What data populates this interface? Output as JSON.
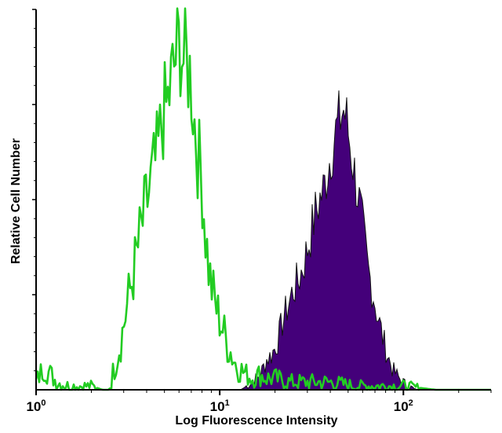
{
  "chart_data": {
    "type": "area",
    "title": "",
    "xlabel": "Log Fluorescence Intensity",
    "ylabel": "Relative Cell Number",
    "x_scale": "log",
    "xlim": [
      1,
      300
    ],
    "ylim": [
      0,
      100
    ],
    "x_ticks": [
      {
        "value": 1,
        "base": "10",
        "exponent": "0"
      },
      {
        "value": 10,
        "base": "10",
        "exponent": "1"
      },
      {
        "value": 100,
        "base": "10",
        "exponent": "2"
      }
    ],
    "grid": false,
    "legend": "none",
    "series": [
      {
        "style": "outline",
        "color": "#22cc22",
        "x": [
          1.0,
          1.1,
          1.2,
          1.3,
          1.5,
          1.7,
          2.0,
          2.3,
          2.5,
          2.7,
          2.9,
          3.1,
          3.4,
          3.7,
          4.0,
          4.3,
          4.6,
          4.9,
          5.2,
          5.5,
          5.8,
          6.1,
          6.4,
          6.7,
          7.0,
          7.3,
          7.6,
          8.0,
          8.4,
          8.8,
          9.3,
          9.8,
          10.4,
          11.0,
          11.7,
          12.4,
          13.2,
          14.0,
          15.0,
          16.5,
          18.0,
          20.0,
          24.0,
          30.0,
          40.0,
          55.0,
          75.0,
          100.0,
          150.0,
          300.0
        ],
        "y": [
          2,
          6,
          4,
          2,
          1,
          1,
          1,
          0,
          0,
          7,
          13,
          21,
          31,
          41,
          49,
          56,
          62,
          72,
          75,
          82,
          88,
          91,
          86,
          85,
          81,
          70,
          62,
          55,
          40,
          30,
          24,
          20,
          16,
          12,
          9,
          6,
          5,
          4,
          3,
          4,
          3,
          3,
          2,
          2,
          2,
          1,
          1,
          1,
          0,
          0
        ]
      },
      {
        "style": "filled",
        "color": "#44007a",
        "x": [
          1.0,
          13.0,
          14.0,
          15.0,
          16.0,
          17.0,
          18.0,
          19.0,
          20.0,
          21.0,
          22.0,
          23.5,
          25.0,
          27.0,
          29.0,
          31.0,
          33.0,
          35.0,
          37.0,
          39.0,
          41.0,
          43.0,
          45.0,
          47.0,
          49.0,
          51.0,
          53.0,
          55.0,
          58.0,
          61.0,
          64.0,
          68.0,
          72.0,
          77.0,
          82.0,
          88.0,
          95.0,
          105.0,
          120.0,
          300.0
        ],
        "y": [
          0,
          0,
          1,
          2,
          3,
          5,
          8,
          9,
          11,
          14,
          18,
          22,
          26,
          29,
          34,
          40,
          46,
          50,
          53,
          59,
          64,
          68,
          71,
          74,
          71,
          65,
          60,
          55,
          48,
          40,
          32,
          26,
          20,
          14,
          9,
          5,
          3,
          1,
          0,
          0
        ]
      }
    ]
  }
}
